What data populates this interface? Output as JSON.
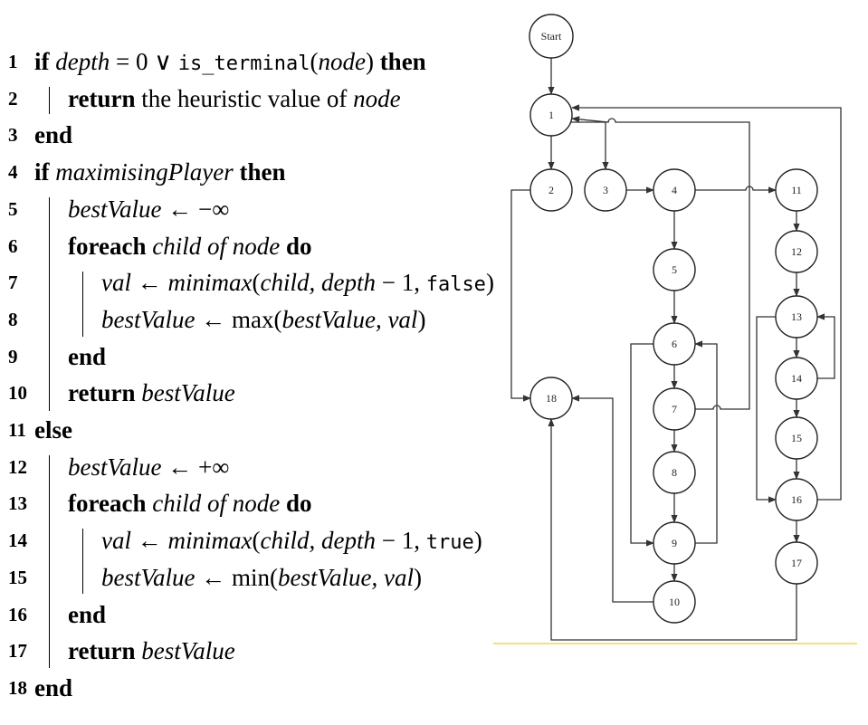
{
  "pseudocode": {
    "lines": [
      {
        "n": "1",
        "parts": [
          [
            "kw",
            "if "
          ],
          [
            "it",
            "depth"
          ],
          [
            "rm",
            " = 0 ∨ "
          ],
          [
            "tt",
            "is_terminal"
          ],
          [
            "rm",
            "("
          ],
          [
            "it",
            "node"
          ],
          [
            "rm",
            ") "
          ],
          [
            "kw",
            "then"
          ]
        ]
      },
      {
        "n": "2",
        "parts": [
          [
            "kw",
            "return"
          ],
          [
            "rm",
            " the heuristic value of "
          ],
          [
            "it",
            "node"
          ]
        ]
      },
      {
        "n": "3",
        "parts": [
          [
            "kw",
            "end"
          ]
        ]
      },
      {
        "n": "4",
        "parts": [
          [
            "kw",
            "if "
          ],
          [
            "it",
            "maximisingPlayer"
          ],
          [
            "kw",
            " then"
          ]
        ]
      },
      {
        "n": "5",
        "parts": [
          [
            "it",
            "bestValue"
          ],
          [
            "rm",
            " ← −∞"
          ]
        ]
      },
      {
        "n": "6",
        "parts": [
          [
            "kw",
            "foreach "
          ],
          [
            "it",
            "child of node"
          ],
          [
            "kw",
            " do"
          ]
        ]
      },
      {
        "n": "7",
        "parts": [
          [
            "it",
            "val"
          ],
          [
            "rm",
            " ← "
          ],
          [
            "it",
            "minimax"
          ],
          [
            "rm",
            "("
          ],
          [
            "it",
            "child, depth"
          ],
          [
            "rm",
            " − 1, "
          ],
          [
            "tt",
            "false"
          ],
          [
            "rm",
            ")"
          ]
        ]
      },
      {
        "n": "8",
        "parts": [
          [
            "it",
            "bestValue"
          ],
          [
            "rm",
            " ← max("
          ],
          [
            "it",
            "bestValue, val"
          ],
          [
            "rm",
            ")"
          ]
        ]
      },
      {
        "n": "9",
        "parts": [
          [
            "kw",
            "end"
          ]
        ]
      },
      {
        "n": "10",
        "parts": [
          [
            "kw",
            "return "
          ],
          [
            "it",
            "bestValue"
          ]
        ]
      },
      {
        "n": "11",
        "parts": [
          [
            "kw",
            "else"
          ]
        ]
      },
      {
        "n": "12",
        "parts": [
          [
            "it",
            "bestValue"
          ],
          [
            "rm",
            " ← +∞"
          ]
        ]
      },
      {
        "n": "13",
        "parts": [
          [
            "kw",
            "foreach "
          ],
          [
            "it",
            "child of node"
          ],
          [
            "kw",
            " do"
          ]
        ]
      },
      {
        "n": "14",
        "parts": [
          [
            "it",
            "val"
          ],
          [
            "rm",
            " ← "
          ],
          [
            "it",
            "minimax"
          ],
          [
            "rm",
            "("
          ],
          [
            "it",
            "child, depth"
          ],
          [
            "rm",
            " − 1, "
          ],
          [
            "tt",
            "true"
          ],
          [
            "rm",
            ")"
          ]
        ]
      },
      {
        "n": "15",
        "parts": [
          [
            "it",
            "bestValue"
          ],
          [
            "rm",
            " ← min("
          ],
          [
            "it",
            "bestValue, val"
          ],
          [
            "rm",
            ")"
          ]
        ]
      },
      {
        "n": "16",
        "parts": [
          [
            "kw",
            "end"
          ]
        ]
      },
      {
        "n": "17",
        "parts": [
          [
            "kw",
            "return "
          ],
          [
            "it",
            "bestValue"
          ]
        ]
      },
      {
        "n": "18",
        "parts": [
          [
            "kw",
            "end"
          ]
        ]
      }
    ],
    "indent_levels": [
      0,
      1,
      0,
      0,
      1,
      1,
      2,
      2,
      1,
      1,
      0,
      1,
      1,
      2,
      2,
      1,
      1,
      0
    ]
  },
  "flowchart": {
    "nodes": [
      {
        "id": "start",
        "label": "Start"
      },
      {
        "id": "n1",
        "label": "1"
      },
      {
        "id": "n2",
        "label": "2"
      },
      {
        "id": "n3",
        "label": "3"
      },
      {
        "id": "n4",
        "label": "4"
      },
      {
        "id": "n5",
        "label": "5"
      },
      {
        "id": "n6",
        "label": "6"
      },
      {
        "id": "n7",
        "label": "7"
      },
      {
        "id": "n8",
        "label": "8"
      },
      {
        "id": "n9",
        "label": "9"
      },
      {
        "id": "n10",
        "label": "10"
      },
      {
        "id": "n11",
        "label": "11"
      },
      {
        "id": "n12",
        "label": "12"
      },
      {
        "id": "n13",
        "label": "13"
      },
      {
        "id": "n14",
        "label": "14"
      },
      {
        "id": "n15",
        "label": "15"
      },
      {
        "id": "n16",
        "label": "16"
      },
      {
        "id": "n17",
        "label": "17"
      },
      {
        "id": "n18",
        "label": "18"
      }
    ],
    "edges": [
      [
        "start",
        "n1"
      ],
      [
        "n1",
        "n2"
      ],
      [
        "n1",
        "n3"
      ],
      [
        "n2",
        "n18"
      ],
      [
        "n3",
        "n4"
      ],
      [
        "n4",
        "n5"
      ],
      [
        "n4",
        "n11"
      ],
      [
        "n5",
        "n6"
      ],
      [
        "n6",
        "n7"
      ],
      [
        "n6",
        "n9"
      ],
      [
        "n7",
        "n8"
      ],
      [
        "n7",
        "n1"
      ],
      [
        "n8",
        "n9"
      ],
      [
        "n9",
        "n6"
      ],
      [
        "n9",
        "n10"
      ],
      [
        "n10",
        "n18"
      ],
      [
        "n11",
        "n12"
      ],
      [
        "n12",
        "n13"
      ],
      [
        "n13",
        "n14"
      ],
      [
        "n13",
        "n16"
      ],
      [
        "n14",
        "n15"
      ],
      [
        "n14",
        "n13"
      ],
      [
        "n15",
        "n16"
      ],
      [
        "n16",
        "n17"
      ],
      [
        "n16",
        "n1"
      ],
      [
        "n17",
        "n18"
      ]
    ],
    "colors": {
      "stroke": "#333333",
      "fill": "#ffffff",
      "rule": "#f3e27c"
    }
  }
}
